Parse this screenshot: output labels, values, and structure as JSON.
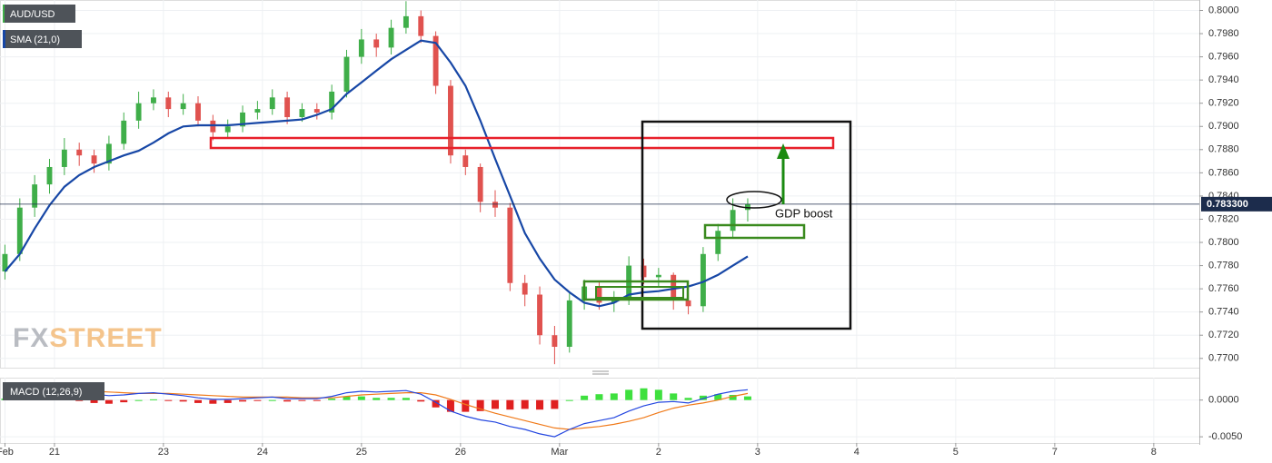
{
  "chart_data": [
    {
      "type": "candlestick",
      "name": "AUD/USD",
      "x": [
        -0.5,
        -0.35,
        -0.2,
        -0.05,
        0.1,
        0.25,
        0.4,
        0.55,
        0.7,
        0.85,
        1.0,
        1.15,
        1.3,
        1.45,
        1.6,
        1.75,
        1.9,
        2.05,
        2.2,
        2.35,
        2.5,
        2.65,
        2.8,
        2.95,
        3.1,
        3.25,
        3.4,
        3.55,
        3.7,
        3.85,
        4.0,
        4.15,
        4.3,
        4.45,
        4.6,
        4.75,
        4.9,
        5.05,
        5.2,
        5.35,
        5.5,
        5.65,
        5.8,
        5.95,
        6.1,
        6.25,
        6.4,
        6.55,
        6.7,
        6.85,
        7.0
      ],
      "open": [
        0.7775,
        0.779,
        0.783,
        0.785,
        0.7865,
        0.788,
        0.7875,
        0.7868,
        0.7885,
        0.7905,
        0.792,
        0.7925,
        0.7915,
        0.792,
        0.7905,
        0.7895,
        0.79,
        0.7912,
        0.7915,
        0.7925,
        0.7908,
        0.7915,
        0.7912,
        0.793,
        0.796,
        0.7975,
        0.7968,
        0.7985,
        0.7995,
        0.7978,
        0.7935,
        0.7875,
        0.7865,
        0.7835,
        0.783,
        0.7765,
        0.7755,
        0.772,
        0.771,
        0.775,
        0.7762,
        0.7748,
        0.7752,
        0.778,
        0.777,
        0.7772,
        0.775,
        0.7745,
        0.779,
        0.781,
        0.7828
      ],
      "high": [
        0.7798,
        0.7838,
        0.7858,
        0.7872,
        0.789,
        0.7886,
        0.788,
        0.7892,
        0.7912,
        0.793,
        0.7932,
        0.793,
        0.7928,
        0.7926,
        0.791,
        0.7906,
        0.7918,
        0.7922,
        0.7932,
        0.793,
        0.792,
        0.792,
        0.7936,
        0.7966,
        0.7984,
        0.798,
        0.7992,
        0.8008,
        0.8,
        0.7982,
        0.794,
        0.788,
        0.7868,
        0.7845,
        0.7834,
        0.7772,
        0.7762,
        0.7728,
        0.7756,
        0.7768,
        0.7766,
        0.7758,
        0.7788,
        0.7786,
        0.7778,
        0.7774,
        0.7756,
        0.7796,
        0.7816,
        0.7838,
        0.7838
      ],
      "low": [
        0.7768,
        0.7784,
        0.7822,
        0.7842,
        0.7858,
        0.7866,
        0.786,
        0.7862,
        0.788,
        0.7898,
        0.7914,
        0.7908,
        0.791,
        0.79,
        0.7888,
        0.789,
        0.7895,
        0.7906,
        0.791,
        0.7902,
        0.7904,
        0.7906,
        0.7906,
        0.7925,
        0.7954,
        0.796,
        0.7962,
        0.798,
        0.7972,
        0.7928,
        0.7868,
        0.7858,
        0.7826,
        0.7822,
        0.7758,
        0.7745,
        0.7712,
        0.7695,
        0.7705,
        0.7742,
        0.7742,
        0.774,
        0.7746,
        0.7764,
        0.7762,
        0.7742,
        0.7738,
        0.774,
        0.7784,
        0.7804,
        0.7818
      ],
      "close": [
        0.779,
        0.783,
        0.785,
        0.7865,
        0.788,
        0.7875,
        0.7868,
        0.7885,
        0.7905,
        0.792,
        0.7925,
        0.7915,
        0.792,
        0.7905,
        0.7895,
        0.79,
        0.7912,
        0.7915,
        0.7925,
        0.7908,
        0.7915,
        0.7912,
        0.793,
        0.796,
        0.7975,
        0.7968,
        0.7985,
        0.7995,
        0.7978,
        0.7935,
        0.7875,
        0.7865,
        0.7835,
        0.783,
        0.7765,
        0.7755,
        0.772,
        0.771,
        0.775,
        0.7762,
        0.7748,
        0.7752,
        0.778,
        0.777,
        0.7772,
        0.775,
        0.7745,
        0.779,
        0.781,
        0.7828,
        0.7833
      ],
      "up_color": "#3fae49",
      "down_color": "#e0524f",
      "series": [
        {
          "name": "SMA (21,0)",
          "color": "#1747a6",
          "values": [
            0.7775,
            0.779,
            0.7812,
            0.7832,
            0.7848,
            0.7858,
            0.7865,
            0.787,
            0.7875,
            0.7879,
            0.7886,
            0.7894,
            0.79,
            0.7901,
            0.7901,
            0.7901,
            0.7902,
            0.7903,
            0.7904,
            0.7905,
            0.7906,
            0.791,
            0.7915,
            0.7928,
            0.7938,
            0.7948,
            0.7958,
            0.7966,
            0.7974,
            0.7972,
            0.7955,
            0.7935,
            0.7905,
            0.7872,
            0.784,
            0.7808,
            0.7786,
            0.7768,
            0.7757,
            0.7748,
            0.7745,
            0.7748,
            0.7755,
            0.7757,
            0.7758,
            0.776,
            0.7762,
            0.7766,
            0.7772,
            0.778,
            0.7788
          ]
        }
      ],
      "xlim": [
        -0.55,
        11.56
      ],
      "ylim": [
        0.7692,
        0.8009
      ],
      "yticks": [
        {
          "value": 0.77,
          "label": "0.7700"
        },
        {
          "value": 0.772,
          "label": "0.7720"
        },
        {
          "value": 0.774,
          "label": "0.7740"
        },
        {
          "value": 0.776,
          "label": "0.7760"
        },
        {
          "value": 0.778,
          "label": "0.7780"
        },
        {
          "value": 0.78,
          "label": "0.7800"
        },
        {
          "value": 0.782,
          "label": "0.7820"
        },
        {
          "value": 0.784,
          "label": "0.7840"
        },
        {
          "value": 0.786,
          "label": "0.7860"
        },
        {
          "value": 0.788,
          "label": "0.7880"
        },
        {
          "value": 0.79,
          "label": "0.7900"
        },
        {
          "value": 0.792,
          "label": "0.7920"
        },
        {
          "value": 0.794,
          "label": "0.7940"
        },
        {
          "value": 0.796,
          "label": "0.7960"
        },
        {
          "value": 0.798,
          "label": "0.7980"
        },
        {
          "value": 0.8,
          "label": "0.8000"
        }
      ],
      "last_price": {
        "value": 0.7833,
        "label": "0.783300"
      },
      "annotation": "GDP boost",
      "watermark": {
        "first": "FX",
        "second": "STREET"
      },
      "grid": true
    },
    {
      "type": "macd",
      "name": "MACD (12,26,9)",
      "series": [
        {
          "color": "#2346e0",
          "values": [
            0.0012,
            0.0015,
            0.0016,
            0.0015,
            0.0014,
            0.0012,
            0.0008,
            0.0006,
            0.0007,
            0.0009,
            0.001,
            0.0008,
            0.0006,
            0.0003,
            0.0001,
            0.0001,
            0.0002,
            0.0003,
            0.0004,
            0.0002,
            0.0002,
            0.0002,
            0.0005,
            0.001,
            0.0012,
            0.0011,
            0.0012,
            0.0013,
            0.0008,
            -0.0003,
            -0.0015,
            -0.0022,
            -0.0027,
            -0.003,
            -0.0036,
            -0.004,
            -0.0046,
            -0.005,
            -0.004,
            -0.0032,
            -0.0028,
            -0.0024,
            -0.0015,
            -0.0008,
            -0.0003,
            -0.0002,
            -0.0004,
            0.0002,
            0.0008,
            0.0012,
            0.0014
          ]
        },
        {
          "color": "#f07a1a",
          "values": [
            0.001,
            0.0011,
            0.0012,
            0.0013,
            0.0013,
            0.0013,
            0.0012,
            0.0011,
            0.001,
            0.0009,
            0.0009,
            0.0009,
            0.0008,
            0.0007,
            0.0006,
            0.0005,
            0.0004,
            0.0004,
            0.0004,
            0.0004,
            0.0003,
            0.0003,
            0.0003,
            0.0005,
            0.0007,
            0.0008,
            0.0009,
            0.001,
            0.001,
            0.0007,
            0.0001,
            -0.0006,
            -0.0012,
            -0.0018,
            -0.0023,
            -0.0028,
            -0.0033,
            -0.0038,
            -0.004,
            -0.0038,
            -0.0036,
            -0.0033,
            -0.0029,
            -0.0024,
            -0.0017,
            -0.0011,
            -0.0007,
            -0.0004,
            0.0,
            0.0005,
            0.0009
          ]
        },
        {
          "color": "#3ee03e",
          "negative_color": "#e02020",
          "values": [
            0.0002,
            0.0004,
            0.0004,
            0.0002,
            0.0001,
            -0.0001,
            -0.0004,
            -0.0005,
            -0.0003,
            0,
            0.0001,
            -0.0001,
            -0.0002,
            -0.0004,
            -0.0005,
            -0.0004,
            -0.0002,
            -0.0001,
            0,
            -0.0002,
            -0.0001,
            -0.0001,
            0.0002,
            0.0005,
            0.0005,
            0.0003,
            0.0003,
            0.0003,
            -0.0002,
            -0.001,
            -0.0016,
            -0.0016,
            -0.0015,
            -0.0012,
            -0.0013,
            -0.0012,
            -0.0013,
            -0.0012,
            0,
            0.0006,
            0.0008,
            0.0009,
            0.0014,
            0.0016,
            0.0014,
            0.0009,
            0.0003,
            0.0006,
            0.0008,
            0.0007,
            0.0005
          ]
        }
      ],
      "ylim": [
        -0.00585,
        0.00305
      ],
      "yticks": [
        {
          "value": 0,
          "label": "0.0000"
        },
        {
          "value": -0.005,
          "label": "-0.0050"
        }
      ],
      "xticks": [
        {
          "value": -0.5,
          "label": "Feb"
        },
        {
          "value": 0,
          "label": "21"
        },
        {
          "value": 1.1,
          "label": "23"
        },
        {
          "value": 2.1,
          "label": "24"
        },
        {
          "value": 3.1,
          "label": "25"
        },
        {
          "value": 4.1,
          "label": "26"
        },
        {
          "value": 5.1,
          "label": "Mar"
        },
        {
          "value": 6.1,
          "label": "2"
        },
        {
          "value": 7.1,
          "label": "3"
        },
        {
          "value": 8.1,
          "label": "4"
        },
        {
          "value": 9.1,
          "label": "5"
        },
        {
          "value": 10.1,
          "label": "7"
        },
        {
          "value": 11.1,
          "label": "8"
        }
      ]
    }
  ]
}
